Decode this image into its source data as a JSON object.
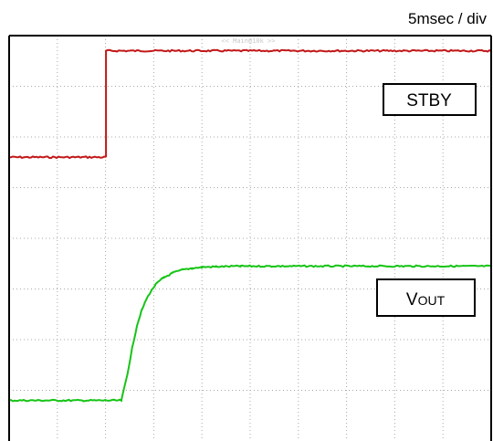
{
  "chart_data": {
    "type": "line",
    "timebase": "5msec / div",
    "header_text": "<< Main@10k >>",
    "grid": true,
    "divisions": {
      "x": 10,
      "y": 8
    },
    "x_unit": "div",
    "y_unit": "div",
    "series": [
      {
        "name": "STBY",
        "color": "#c21818",
        "x": [
          0.0,
          2.01,
          2.01,
          10.0
        ],
        "y": [
          5.6,
          5.6,
          7.7,
          7.7
        ]
      },
      {
        "name": "VOUT",
        "name_main": "V",
        "name_sub": "OUT",
        "color": "#16c416",
        "x": [
          0.0,
          2.33,
          2.45,
          2.55,
          2.65,
          2.75,
          2.85,
          2.95,
          3.05,
          3.2,
          3.4,
          3.6,
          3.8,
          4.0,
          4.3,
          4.8,
          10.0
        ],
        "y": [
          0.8,
          0.8,
          1.3,
          1.82,
          2.27,
          2.58,
          2.8,
          2.97,
          3.1,
          3.22,
          3.32,
          3.38,
          3.41,
          3.43,
          3.44,
          3.45,
          3.45
        ]
      }
    ],
    "legend": {
      "stby": "STBY",
      "vout_main": "V",
      "vout_sub": "OUT"
    }
  }
}
